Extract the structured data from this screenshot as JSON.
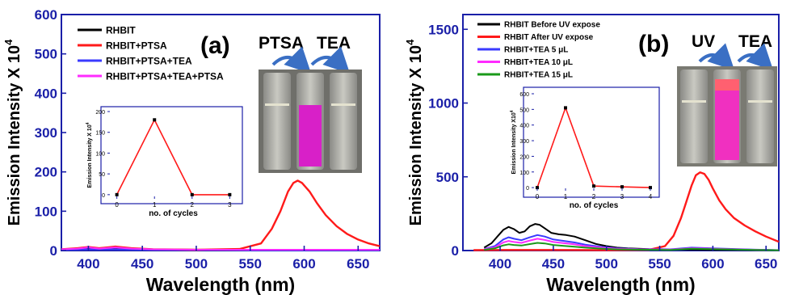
{
  "colors": {
    "axis": "#1a1fa8",
    "black": "#000000",
    "red": "#ff1a1a",
    "blue": "#3a3aff",
    "magenta": "#ff2bff",
    "green": "#1a9a1a"
  },
  "chart_data": [
    {
      "id": "a",
      "type": "line",
      "panel_label": "(a)",
      "xlabel": "Wavelength (nm)",
      "ylabel": "Emission Intensity X 10",
      "ylabel_sup": "4",
      "xlim": [
        375,
        670
      ],
      "ylim": [
        0,
        600
      ],
      "xticks": [
        400,
        450,
        500,
        550,
        600,
        650
      ],
      "yticks": [
        0,
        100,
        200,
        300,
        400,
        500,
        600
      ],
      "grid": false,
      "legend_position": "top-left",
      "series": [
        {
          "name": "RHBIT",
          "color": "black",
          "x": [
            375,
            390,
            400,
            410,
            420,
            430,
            440,
            460,
            500,
            550,
            600,
            650,
            670
          ],
          "y": [
            3,
            5,
            6,
            4,
            5,
            6,
            4,
            3,
            2,
            1,
            1,
            1,
            1
          ]
        },
        {
          "name": "RHBIT+PTSA",
          "color": "red",
          "x": [
            375,
            390,
            400,
            410,
            425,
            440,
            460,
            500,
            540,
            560,
            570,
            578,
            585,
            590,
            594,
            598,
            605,
            612,
            620,
            630,
            640,
            650,
            660,
            670
          ],
          "y": [
            3,
            6,
            9,
            6,
            10,
            6,
            3,
            2,
            4,
            18,
            55,
            100,
            150,
            172,
            178,
            172,
            150,
            120,
            90,
            62,
            42,
            28,
            18,
            11
          ]
        },
        {
          "name": "RHBIT+PTSA+TEA",
          "color": "blue",
          "x": [
            375,
            400,
            425,
            450,
            500,
            550,
            600,
            650,
            670
          ],
          "y": [
            2,
            3,
            3,
            2,
            2,
            1,
            1,
            1,
            1
          ]
        },
        {
          "name": "RHBIT+PTSA+TEA+PTSA",
          "color": "magenta",
          "x": [
            375,
            390,
            400,
            410,
            425,
            440,
            460,
            500,
            550,
            600,
            670
          ],
          "y": [
            3,
            5,
            8,
            5,
            8,
            5,
            3,
            2,
            2,
            2,
            2
          ]
        }
      ],
      "annotations": [
        "PTSA",
        "TEA"
      ],
      "inset": {
        "type": "line",
        "xlabel": "no. of cycles",
        "ylabel": "Emission Intensity X 10",
        "ylabel_sup": "4",
        "xlim": [
          -0.25,
          3.25
        ],
        "ylim": [
          -10,
          200
        ],
        "xticks": [
          0,
          1,
          2,
          3
        ],
        "yticks": [
          0,
          50,
          100,
          150,
          200
        ],
        "x": [
          0,
          1,
          2,
          3
        ],
        "y": [
          0,
          180,
          0,
          0
        ]
      }
    },
    {
      "id": "b",
      "type": "line",
      "panel_label": "(b)",
      "xlabel": "Wavelength (nm)",
      "ylabel": "Emission Intensity X 10",
      "ylabel_sup": "4",
      "xlim": [
        365,
        662
      ],
      "ylim": [
        0,
        1600
      ],
      "xticks": [
        400,
        450,
        500,
        550,
        600,
        650
      ],
      "yticks": [
        0,
        500,
        1000,
        1500
      ],
      "grid": false,
      "legend_position": "top-left",
      "series": [
        {
          "name": "RHBIT Before UV expose",
          "color": "black",
          "x": [
            385,
            392,
            398,
            403,
            408,
            413,
            418,
            423,
            428,
            433,
            437,
            442,
            448,
            455,
            462,
            470,
            480,
            490,
            500,
            510,
            520,
            540,
            560,
            580,
            600,
            640,
            660
          ],
          "y": [
            20,
            50,
            100,
            140,
            160,
            145,
            120,
            130,
            165,
            180,
            175,
            150,
            120,
            110,
            105,
            95,
            70,
            45,
            30,
            20,
            15,
            10,
            8,
            6,
            5,
            4,
            3
          ]
        },
        {
          "name": "RHBIT After UV expose",
          "color": "red",
          "x": [
            375,
            400,
            450,
            500,
            540,
            555,
            563,
            570,
            575,
            580,
            584,
            588,
            592,
            596,
            600,
            606,
            612,
            620,
            630,
            640,
            650,
            662
          ],
          "y": [
            3,
            4,
            4,
            3,
            5,
            30,
            100,
            220,
            330,
            440,
            510,
            530,
            520,
            480,
            420,
            340,
            280,
            220,
            170,
            130,
            95,
            60
          ]
        },
        {
          "name": "RHBIT+TEA 5 μL",
          "color": "blue",
          "x": [
            385,
            395,
            403,
            408,
            413,
            420,
            428,
            435,
            442,
            450,
            460,
            470,
            480,
            495,
            510,
            530,
            560,
            580,
            600,
            640,
            662
          ],
          "y": [
            10,
            30,
            75,
            90,
            80,
            70,
            90,
            105,
            95,
            75,
            65,
            55,
            40,
            25,
            15,
            10,
            8,
            20,
            15,
            6,
            3
          ]
        },
        {
          "name": "RHBIT+TEA 10 μL",
          "color": "magenta",
          "x": [
            385,
            395,
            403,
            408,
            413,
            420,
            428,
            435,
            442,
            450,
            460,
            470,
            480,
            495,
            510,
            530,
            560,
            580,
            600,
            640,
            662
          ],
          "y": [
            8,
            22,
            55,
            65,
            58,
            52,
            68,
            80,
            72,
            58,
            50,
            42,
            30,
            20,
            12,
            8,
            6,
            15,
            12,
            5,
            2
          ]
        },
        {
          "name": "RHBIT+TEA 15 μL",
          "color": "green",
          "x": [
            385,
            395,
            403,
            408,
            413,
            420,
            428,
            435,
            442,
            450,
            460,
            470,
            480,
            495,
            510,
            530,
            560,
            580,
            600,
            640,
            662
          ],
          "y": [
            5,
            15,
            35,
            42,
            38,
            34,
            44,
            52,
            48,
            38,
            32,
            26,
            20,
            13,
            8,
            6,
            4,
            12,
            10,
            4,
            2
          ]
        }
      ],
      "annotations": [
        "UV",
        "TEA"
      ],
      "inset": {
        "type": "line",
        "xlabel": "no. of cycles",
        "ylabel": "Emission Intensity X10",
        "ylabel_sup": "4",
        "xlim": [
          -0.2,
          4.2
        ],
        "ylim": [
          -20,
          600
        ],
        "xticks": [
          0,
          1,
          2,
          3,
          4
        ],
        "yticks": [
          0,
          100,
          200,
          300,
          400,
          500,
          600
        ],
        "x": [
          0,
          1,
          2,
          3,
          4
        ],
        "y": [
          0,
          510,
          10,
          5,
          0
        ]
      }
    }
  ]
}
